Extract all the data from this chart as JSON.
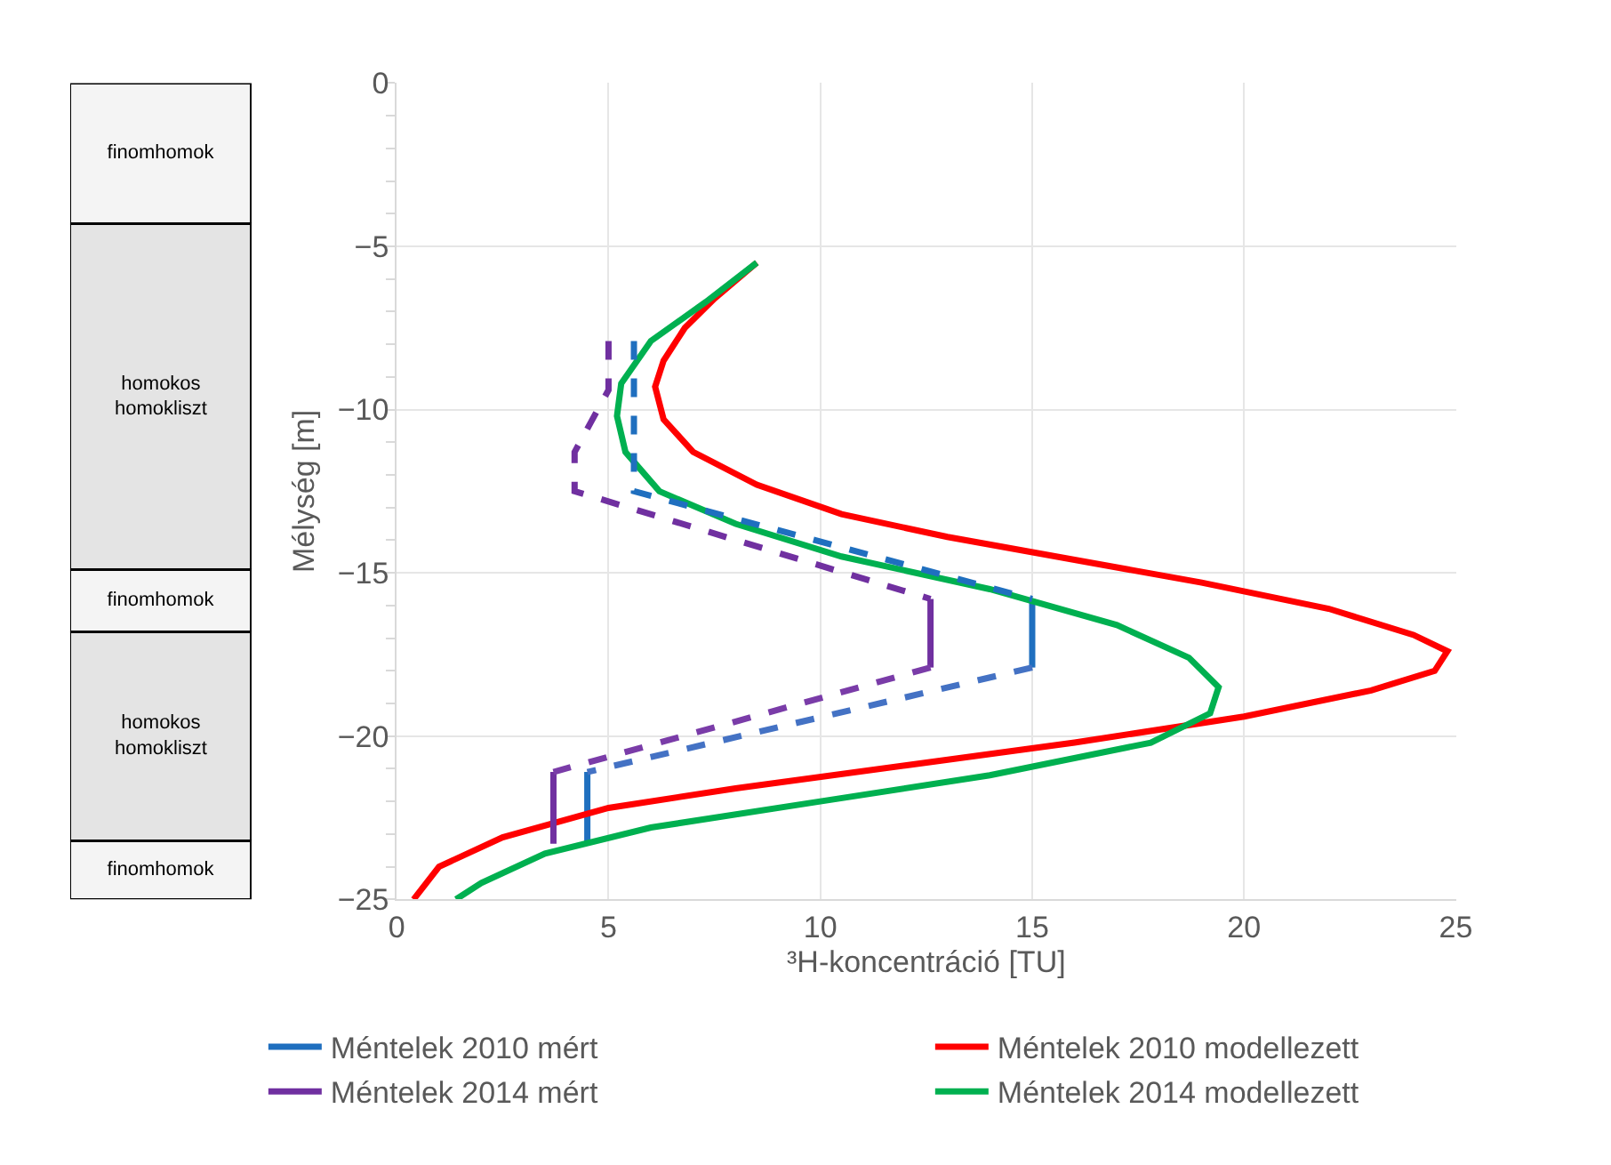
{
  "chart_data": [
    {
      "type": "bar",
      "stacked": true,
      "categories": [
        null
      ],
      "ylim": [
        -25,
        0
      ],
      "tick_labels": false,
      "legend": false,
      "series": [
        {
          "name": "finomhomok",
          "color": "#f4f4f4",
          "values": [
            -4.3
          ]
        },
        {
          "name": "homokos homokliszt",
          "color": "#e4e4e4",
          "values": [
            -10.6
          ]
        },
        {
          "name": "finomhomok",
          "color": "#f4f4f4",
          "values": [
            -1.9
          ]
        },
        {
          "name": "homokos homokliszt",
          "color": "#e4e4e4",
          "values": [
            -6.4
          ]
        },
        {
          "name": "finomhomok",
          "color": "#f4f4f4",
          "values": [
            -1.8
          ]
        }
      ]
    },
    {
      "type": "line",
      "xlabel": "³H-koncentráció [TU]",
      "ylabel": "Mélység [m]",
      "xlim": [
        0,
        25
      ],
      "xticks": [
        0,
        5,
        10,
        15,
        20,
        25
      ],
      "ylim": [
        -25,
        0
      ],
      "yticks": [
        0,
        -5,
        -10,
        -15,
        -20,
        -25
      ],
      "grid": true,
      "legend": "bottom",
      "marker": "none",
      "series": [
        {
          "name": "Méntelek 2010 mért",
          "color": "#1f6fbf",
          "line_style": "solid",
          "x": [
            15,
            15,
            null,
            4.5,
            4.5
          ],
          "values": [
            -15.8,
            -17.9,
            null,
            -21.1,
            -23.3
          ]
        },
        {
          "name": "Méntelek 2010 modellezett",
          "color": "#ff0000",
          "line_style": "solid",
          "x": [
            8.5,
            7.5,
            6.8,
            6.3,
            6.1,
            6.3,
            7.0,
            8.5,
            10.5,
            13.0,
            16.0,
            19.0,
            22.0,
            24.0,
            24.8,
            24.5,
            23.0,
            20.0,
            16.0,
            12.0,
            8.0,
            5.0,
            2.5,
            1.0,
            0.4
          ],
          "values": [
            -5.5,
            -6.6,
            -7.5,
            -8.5,
            -9.3,
            -10.3,
            -11.3,
            -12.3,
            -13.2,
            -13.9,
            -14.6,
            -15.3,
            -16.1,
            -16.9,
            -17.4,
            -18.0,
            -18.6,
            -19.4,
            -20.2,
            -20.9,
            -21.6,
            -22.2,
            -23.1,
            -24.0,
            -25.0
          ]
        },
        {
          "name": "Méntelek 2014 mért",
          "color": "#7030a0",
          "line_style": "solid",
          "x": [
            12.6,
            12.6,
            null,
            3.7,
            3.7
          ],
          "values": [
            -15.8,
            -17.9,
            null,
            -21.1,
            -23.3
          ]
        },
        {
          "name": "Méntelek 2014 modellezett",
          "color": "#00b050",
          "line_style": "solid",
          "x": [
            8.5,
            7.3,
            6.0,
            5.3,
            5.2,
            5.4,
            6.2,
            8.0,
            10.5,
            14.0,
            17.0,
            18.7,
            19.4,
            19.2,
            17.8,
            14.0,
            10.0,
            6.0,
            3.5,
            2.0,
            1.4
          ],
          "values": [
            -5.5,
            -6.7,
            -7.9,
            -9.2,
            -10.2,
            -11.3,
            -12.5,
            -13.5,
            -14.5,
            -15.5,
            -16.6,
            -17.6,
            -18.5,
            -19.3,
            -20.2,
            -21.2,
            -22.0,
            -22.8,
            -23.6,
            -24.5,
            -25.0
          ]
        },
        {
          "color": "#1f6fbf",
          "line_style": "dashed",
          "x": [
            5.6,
            5.6,
            15
          ],
          "values": [
            -7.9,
            -12.5,
            -15.8
          ]
        },
        {
          "color": "#4472c4",
          "line_style": "dashed",
          "x": [
            15,
            4.5
          ],
          "values": [
            -17.9,
            -21.1
          ]
        },
        {
          "color": "#7030a0",
          "line_style": "dashed",
          "x": [
            5.0,
            5.0,
            4.2,
            4.2,
            12.6
          ],
          "values": [
            -7.9,
            -9.4,
            -11.3,
            -12.5,
            -15.8
          ]
        },
        {
          "color": "#7a3ca8",
          "line_style": "dashed",
          "x": [
            12.6,
            3.7
          ],
          "values": [
            -17.9,
            -21.1
          ]
        }
      ]
    }
  ]
}
